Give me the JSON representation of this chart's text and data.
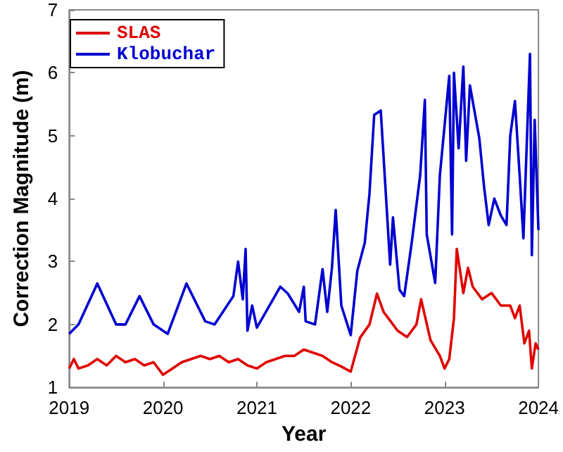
{
  "chart_data": {
    "type": "line",
    "xlabel": "Year",
    "ylabel": "Correction Magnitude (m)",
    "xlim": [
      2019,
      2024
    ],
    "xticks": [
      2019,
      2020,
      2021,
      2022,
      2023,
      2024
    ],
    "ylim": [
      1,
      7
    ],
    "yticks": [
      1,
      2,
      3,
      4,
      5,
      6,
      7
    ],
    "grid": false,
    "legend": "top left",
    "marker": "none",
    "line_style": "solid",
    "series": [
      {
        "name": "SLAS",
        "color": "#e00000",
        "x": [
          2019.0,
          2019.05,
          2019.1,
          2019.2,
          2019.3,
          2019.4,
          2019.5,
          2019.6,
          2019.7,
          2019.8,
          2019.9,
          2020.0,
          2020.1,
          2020.2,
          2020.3,
          2020.4,
          2020.5,
          2020.6,
          2020.7,
          2020.8,
          2020.9,
          2021.0,
          2021.1,
          2021.2,
          2021.3,
          2021.4,
          2021.5,
          2021.6,
          2021.7,
          2021.8,
          2021.9,
          2022.0,
          2022.1,
          2022.2,
          2022.28,
          2022.35,
          2022.4,
          2022.5,
          2022.6,
          2022.7,
          2022.75,
          2022.85,
          2022.95,
          2023.0,
          2023.05,
          2023.1,
          2023.13,
          2023.2,
          2023.25,
          2023.3,
          2023.4,
          2023.5,
          2023.6,
          2023.7,
          2023.75,
          2023.8,
          2023.85,
          2023.9,
          2023.93,
          2023.97,
          2024.0
        ],
        "values": [
          1.3,
          1.45,
          1.3,
          1.35,
          1.45,
          1.35,
          1.5,
          1.4,
          1.45,
          1.35,
          1.4,
          1.2,
          1.3,
          1.4,
          1.45,
          1.5,
          1.45,
          1.5,
          1.4,
          1.45,
          1.35,
          1.3,
          1.4,
          1.45,
          1.5,
          1.5,
          1.6,
          1.55,
          1.5,
          1.4,
          1.33,
          1.25,
          1.79,
          2.0,
          2.49,
          2.2,
          2.1,
          1.9,
          1.8,
          2.0,
          2.4,
          1.75,
          1.5,
          1.3,
          1.45,
          2.1,
          3.2,
          2.5,
          2.9,
          2.6,
          2.4,
          2.5,
          2.3,
          2.3,
          2.1,
          2.3,
          1.7,
          1.9,
          1.3,
          1.7,
          1.6
        ]
      },
      {
        "name": "Klobuchar",
        "color": "#0000d0",
        "x": [
          2019.0,
          2019.1,
          2019.3,
          2019.5,
          2019.6,
          2019.75,
          2019.9,
          2020.05,
          2020.25,
          2020.45,
          2020.55,
          2020.75,
          2020.8,
          2020.85,
          2020.88,
          2020.9,
          2020.95,
          2021.0,
          2021.25,
          2021.33,
          2021.45,
          2021.5,
          2021.52,
          2021.62,
          2021.7,
          2021.75,
          2021.8,
          2021.84,
          2021.9,
          2022.0,
          2022.07,
          2022.15,
          2022.2,
          2022.25,
          2022.32,
          2022.42,
          2022.45,
          2022.52,
          2022.57,
          2022.65,
          2022.74,
          2022.79,
          2022.81,
          2022.9,
          2022.95,
          2023.05,
          2023.08,
          2023.1,
          2023.15,
          2023.2,
          2023.23,
          2023.27,
          2023.37,
          2023.42,
          2023.47,
          2023.53,
          2023.6,
          2023.66,
          2023.7,
          2023.75,
          2023.8,
          2023.84,
          2023.91,
          2023.93,
          2023.96,
          2024.0
        ],
        "values": [
          1.85,
          2.0,
          2.65,
          2.0,
          2.0,
          2.45,
          2.0,
          1.85,
          2.65,
          2.05,
          2.0,
          2.45,
          3.0,
          2.4,
          3.2,
          1.9,
          2.3,
          1.95,
          2.6,
          2.49,
          2.2,
          2.6,
          2.05,
          2.0,
          2.88,
          2.2,
          2.9,
          3.82,
          2.3,
          1.83,
          2.85,
          3.3,
          4.08,
          5.33,
          5.4,
          2.95,
          3.7,
          2.55,
          2.45,
          3.3,
          4.37,
          5.57,
          3.43,
          2.66,
          4.37,
          5.95,
          3.43,
          6.0,
          4.8,
          6.1,
          4.6,
          5.8,
          4.96,
          4.2,
          3.58,
          4.0,
          3.73,
          3.58,
          5.0,
          5.55,
          4.37,
          3.37,
          6.3,
          3.1,
          5.25,
          3.5
        ]
      }
    ]
  }
}
